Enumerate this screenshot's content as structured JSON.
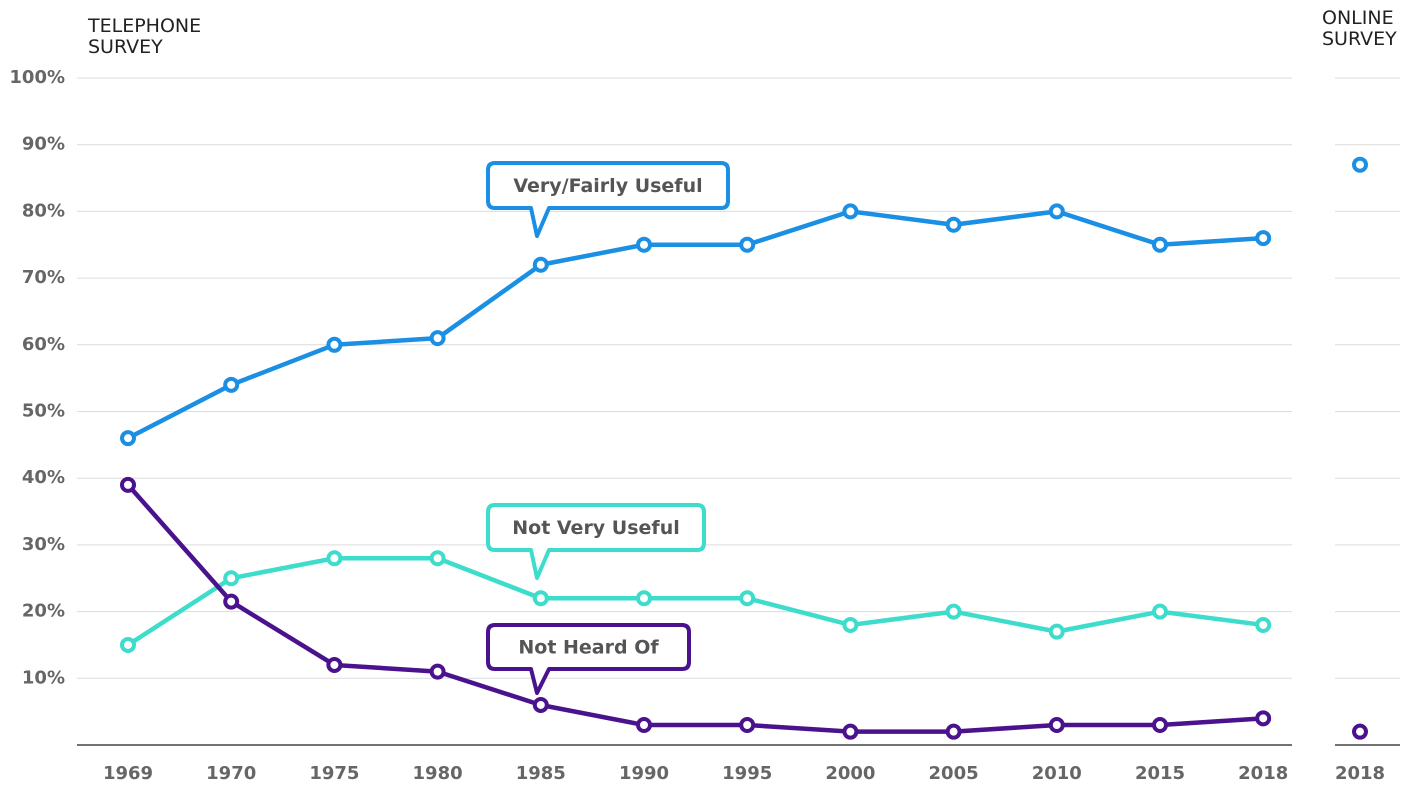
{
  "chart_data": [
    {
      "type": "line",
      "title": "TELEPHONE SURVEY",
      "categories": [
        "1969",
        "1970",
        "1975",
        "1980",
        "1985",
        "1990",
        "1995",
        "2000",
        "2005",
        "2010",
        "2015",
        "2018"
      ],
      "series": [
        {
          "name": "Very/Fairly Useful",
          "color": "#1a8fe3",
          "values": [
            46,
            54,
            60,
            61,
            72,
            75,
            75,
            80,
            78,
            80,
            75,
            76
          ]
        },
        {
          "name": "Not Very Useful",
          "color": "#3ddccb",
          "values": [
            15,
            25,
            28,
            28,
            22,
            22,
            22,
            18,
            20,
            17,
            20,
            18
          ]
        },
        {
          "name": "Not Heard Of",
          "color": "#4a128c",
          "values": [
            39,
            21.5,
            12,
            11,
            6,
            3,
            3,
            2,
            2,
            3,
            3,
            4
          ]
        }
      ],
      "ylim": [
        0,
        100
      ],
      "yticks": [
        {
          "value": 10,
          "label": "10%"
        },
        {
          "value": 20,
          "label": "20%"
        },
        {
          "value": 30,
          "label": "30%"
        },
        {
          "value": 40,
          "label": "40%"
        },
        {
          "value": 50,
          "label": "50%"
        },
        {
          "value": 60,
          "label": "60%"
        },
        {
          "value": 70,
          "label": "70%"
        },
        {
          "value": 80,
          "label": "80%"
        },
        {
          "value": 90,
          "label": "90%"
        },
        {
          "value": 100,
          "label": "100%"
        }
      ],
      "grid": true
    },
    {
      "type": "line",
      "title": "ONLINE SURVEY",
      "categories": [
        "2018"
      ],
      "series": [
        {
          "color": "#1a8fe3",
          "values": [
            87
          ]
        },
        {
          "color": "#3ddccb",
          "values": [
            null
          ]
        },
        {
          "color": "#4a128c",
          "values": [
            2
          ]
        }
      ],
      "ylim": [
        0,
        100
      ]
    }
  ]
}
